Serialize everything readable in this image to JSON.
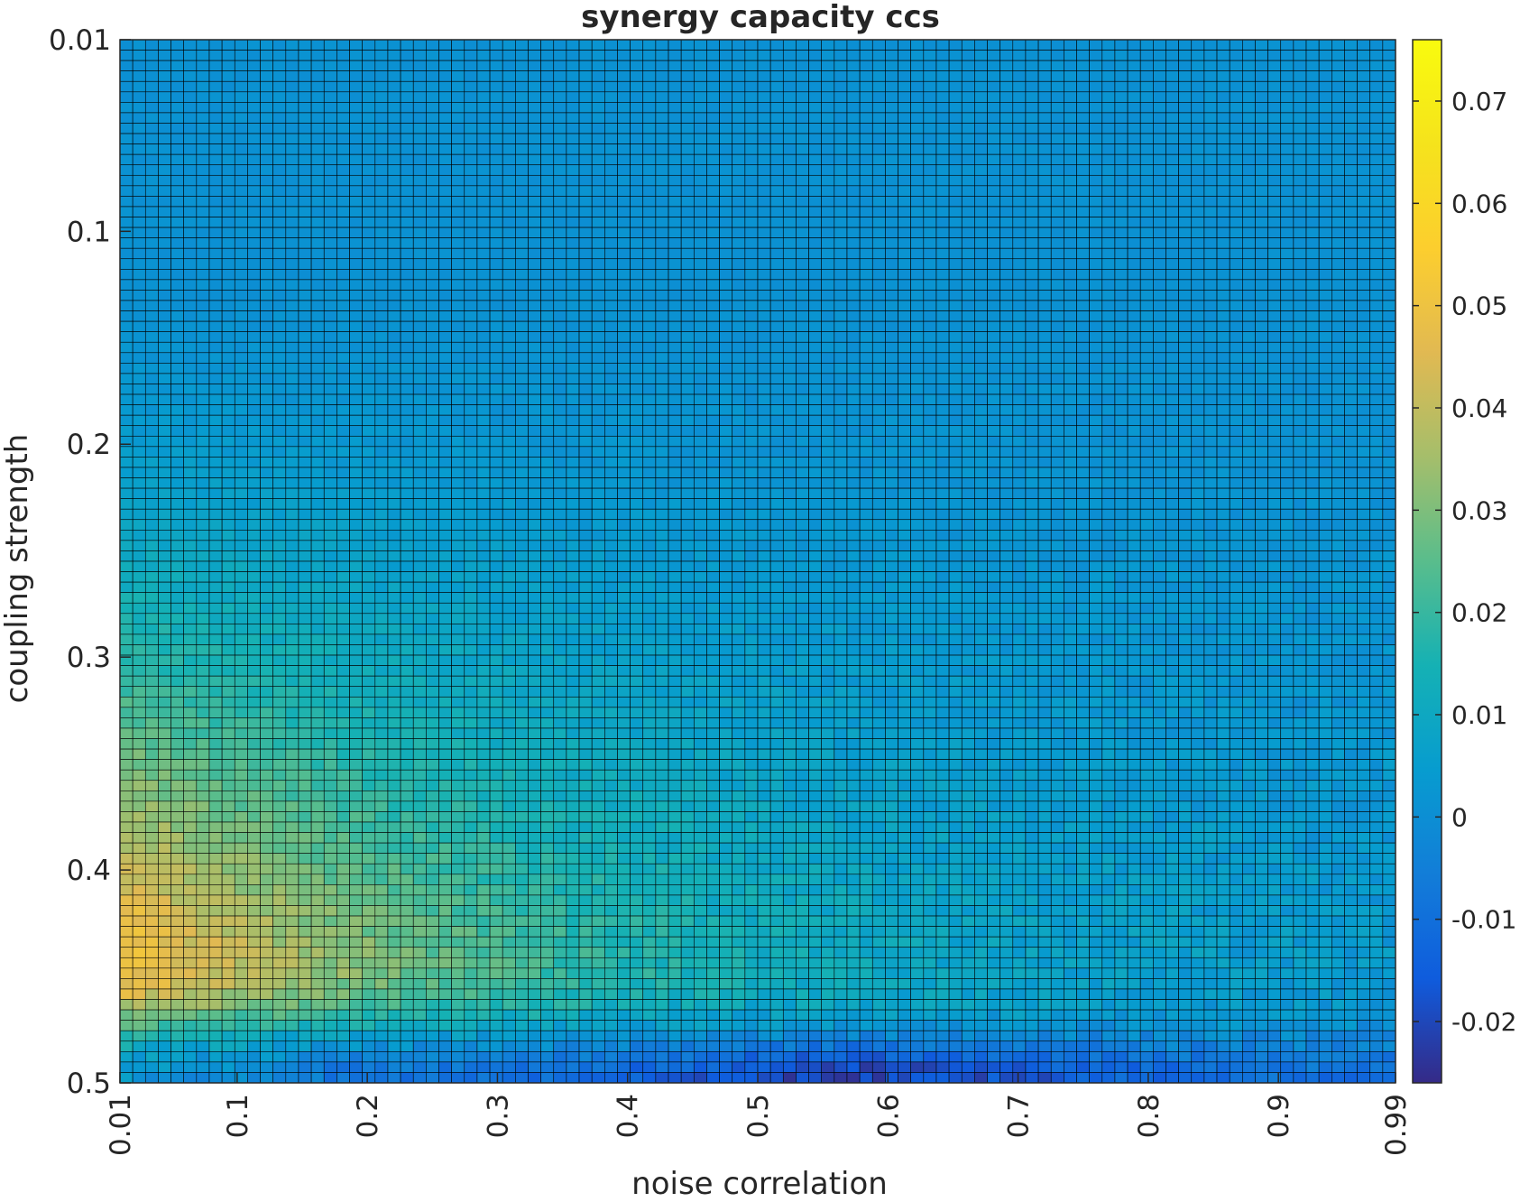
{
  "chart_data": {
    "type": "heatmap",
    "title": "synergy capacity ccs",
    "xlabel": "noise correlation",
    "ylabel": "coupling strength",
    "x_tick_labels": [
      "0.01",
      "0.1",
      "0.2",
      "0.3",
      "0.4",
      "0.5",
      "0.6",
      "0.7",
      "0.8",
      "0.9",
      "0.99"
    ],
    "x_tick_values": [
      0.01,
      0.1,
      0.2,
      0.3,
      0.4,
      0.5,
      0.6,
      0.7,
      0.8,
      0.9,
      0.99
    ],
    "y_tick_labels": [
      "0.01",
      "0.1",
      "0.2",
      "0.3",
      "0.4",
      "0.5"
    ],
    "y_tick_values": [
      0.01,
      0.1,
      0.2,
      0.3,
      0.4,
      0.5
    ],
    "xlim": [
      0.01,
      0.99
    ],
    "ylim": [
      0.01,
      0.5
    ],
    "y_direction": "top-to-bottom",
    "grid_columns": 100,
    "grid_rows": 100,
    "cell_edges": true,
    "cell_edge_color": "#000000",
    "colormap": "parula",
    "colorbar": {
      "position": "right",
      "tick_labels": [
        "0.07",
        "0.06",
        "0.05",
        "0.04",
        "0.03",
        "0.02",
        "0.01",
        "0",
        "-0.01",
        "-0.02"
      ],
      "tick_values": [
        0.07,
        0.06,
        0.05,
        0.04,
        0.03,
        0.02,
        0.01,
        0,
        -0.01,
        -0.02
      ],
      "range": [
        -0.026,
        0.076
      ]
    },
    "value_description": "Values are highest (~0.07) at low noise correlation and coupling strength around 0.38-0.46, decreasing toward ~0 at low coupling strength and high noise correlation; negative values (~-0.02) appear at coupling strength near 0.5 with noise correlation 0.4-0.8."
  }
}
